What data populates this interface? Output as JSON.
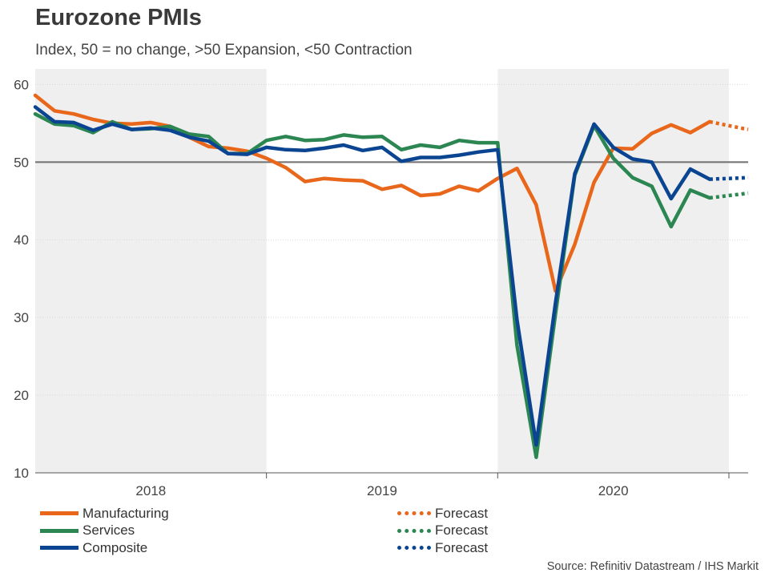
{
  "chart_data": {
    "type": "line",
    "title": "Eurozone PMIs",
    "subtitle": "Index, 50 = no change, >50 Expansion, <50 Contraction",
    "ylim": [
      10,
      62
    ],
    "yticks": [
      10,
      20,
      30,
      40,
      50,
      60
    ],
    "reference_line": 50,
    "x_start": "2018-01",
    "x_end": "2021-01",
    "year_labels": [
      "2018",
      "2019",
      "2020"
    ],
    "shaded_years": [
      "2018",
      "2020"
    ],
    "months": [
      "2018-01",
      "2018-02",
      "2018-03",
      "2018-04",
      "2018-05",
      "2018-06",
      "2018-07",
      "2018-08",
      "2018-09",
      "2018-10",
      "2018-11",
      "2018-12",
      "2019-01",
      "2019-02",
      "2019-03",
      "2019-04",
      "2019-05",
      "2019-06",
      "2019-07",
      "2019-08",
      "2019-09",
      "2019-10",
      "2019-11",
      "2019-12",
      "2020-01",
      "2020-02",
      "2020-03",
      "2020-04",
      "2020-05",
      "2020-06",
      "2020-07",
      "2020-08",
      "2020-09",
      "2020-10",
      "2020-11",
      "2020-12"
    ],
    "series": [
      {
        "name": "Manufacturing",
        "color": "#e8671a",
        "values": [
          58.6,
          56.6,
          56.2,
          55.5,
          55.0,
          54.9,
          55.1,
          54.6,
          53.2,
          52.0,
          51.8,
          51.4,
          50.5,
          49.3,
          47.5,
          47.9,
          47.7,
          47.6,
          46.5,
          47.0,
          45.7,
          45.9,
          46.9,
          46.3,
          47.9,
          49.2,
          44.5,
          33.4,
          39.4,
          47.4,
          51.8,
          51.7,
          53.7,
          54.8,
          53.8,
          55.2
        ],
        "forecast": [
          55.2,
          54.7,
          54.2
        ]
      },
      {
        "name": "Services",
        "color": "#2b8652",
        "values": [
          56.2,
          54.9,
          54.7,
          53.8,
          55.2,
          54.2,
          54.3,
          54.6,
          53.6,
          53.3,
          51.1,
          51.1,
          52.8,
          53.3,
          52.8,
          52.9,
          53.5,
          53.2,
          53.3,
          51.6,
          52.2,
          51.9,
          52.8,
          52.5,
          52.5,
          26.4,
          12.0,
          30.5,
          48.3,
          54.7,
          50.5,
          48.0,
          46.9,
          41.7,
          46.4,
          45.4
        ],
        "forecast": [
          45.4,
          45.7,
          46.0
        ]
      },
      {
        "name": "Composite",
        "color": "#0b4592",
        "values": [
          57.1,
          55.2,
          55.1,
          54.1,
          54.9,
          54.2,
          54.4,
          54.1,
          53.2,
          52.7,
          51.1,
          51.0,
          51.9,
          51.6,
          51.5,
          51.8,
          52.2,
          51.5,
          51.9,
          50.1,
          50.6,
          50.6,
          50.9,
          51.3,
          51.6,
          29.7,
          13.6,
          31.9,
          48.5,
          54.9,
          51.9,
          50.4,
          50.0,
          45.3,
          49.1,
          47.8
        ],
        "forecast": [
          47.8,
          47.9,
          48.0
        ]
      }
    ],
    "legend": [
      {
        "label": "Manufacturing",
        "forecast_label": "Forecast"
      },
      {
        "label": "Services",
        "forecast_label": "Forecast"
      },
      {
        "label": "Composite",
        "forecast_label": "Forecast"
      }
    ],
    "source": "Source: Refinitiv Datastream / IHS Markit"
  }
}
